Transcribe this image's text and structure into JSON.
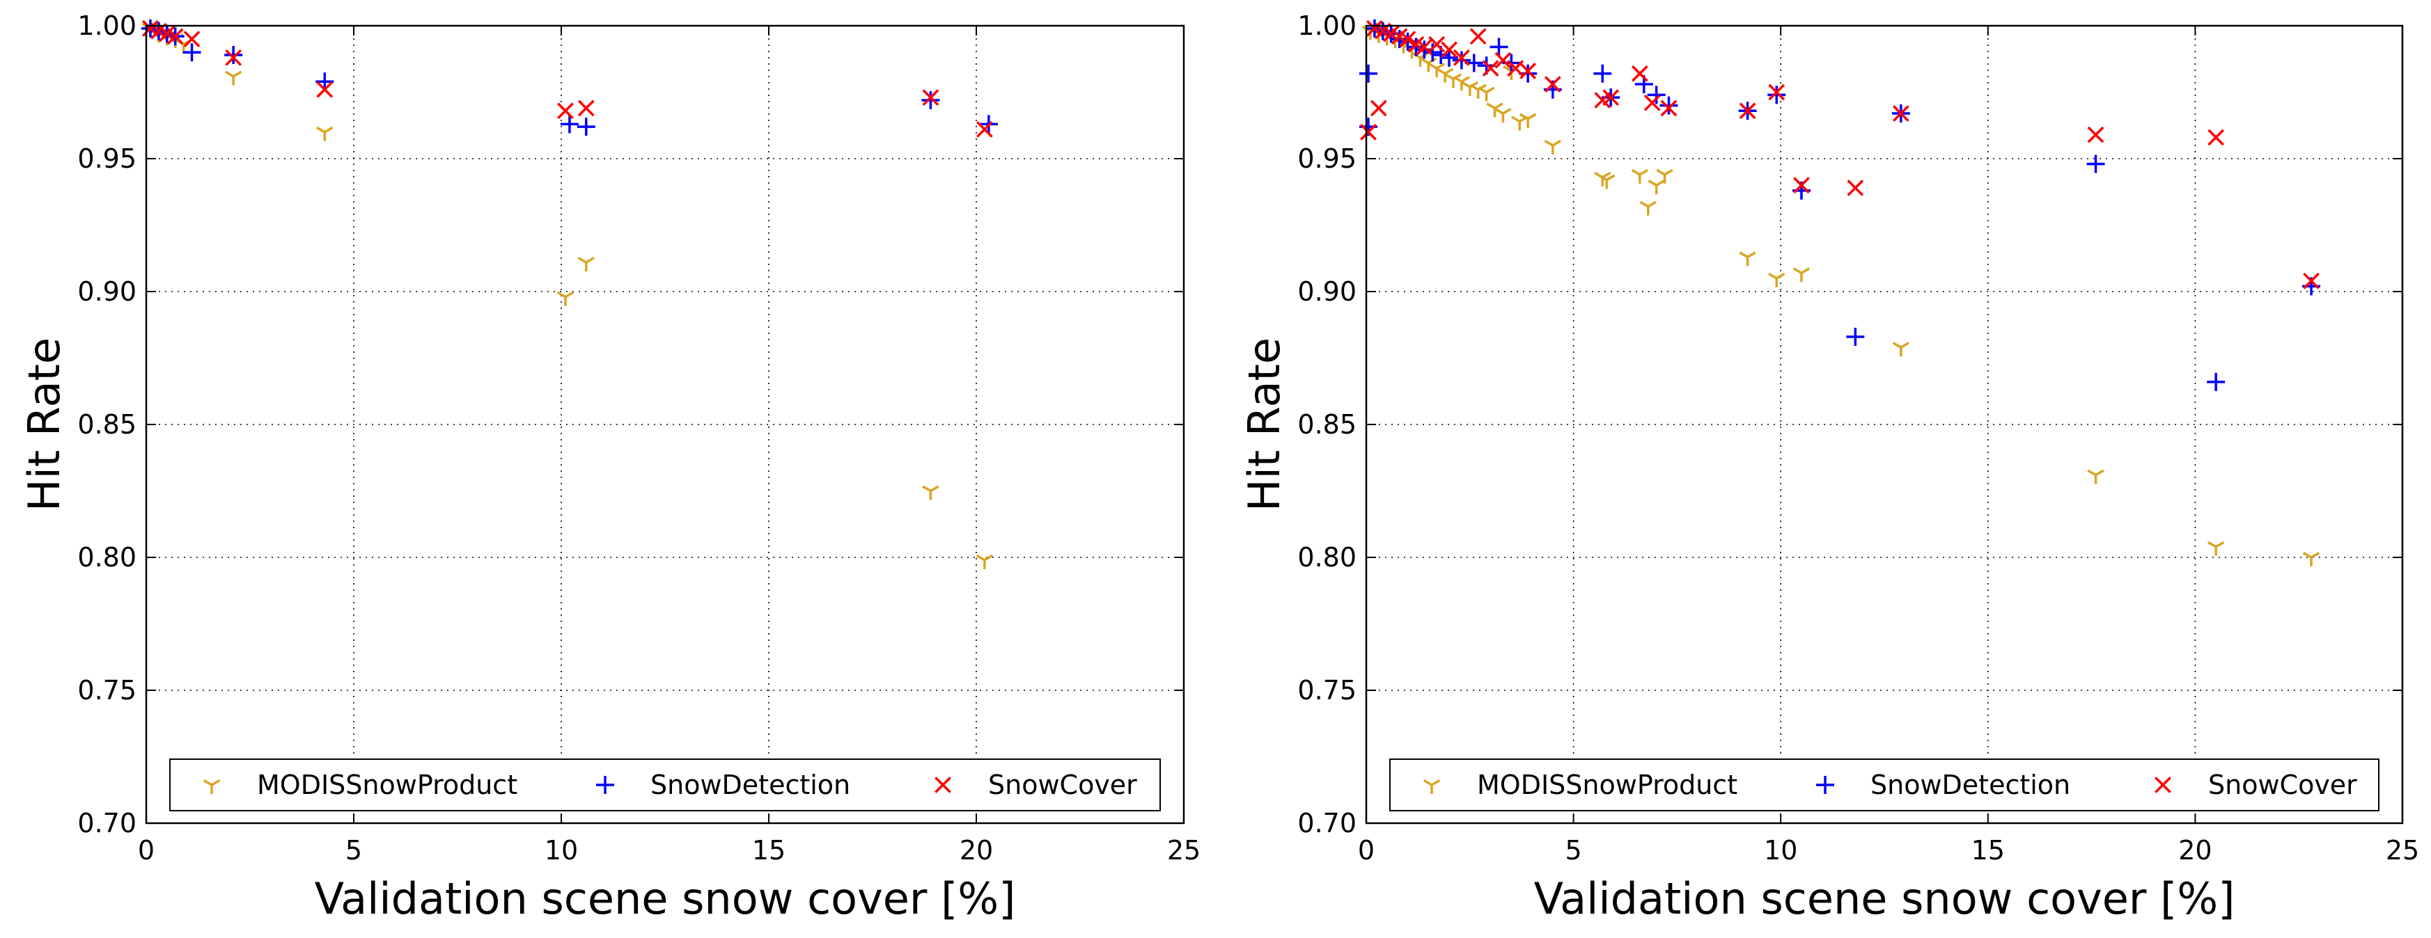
{
  "chart_data": [
    {
      "type": "scatter",
      "title": "",
      "xlabel": "Validation scene snow cover [%]",
      "ylabel": "Hit Rate",
      "xlim": [
        0,
        25
      ],
      "ylim": [
        0.7,
        1.0
      ],
      "xticks": [
        0,
        5,
        10,
        15,
        20,
        25
      ],
      "xtick_labels": [
        "0",
        "5",
        "10",
        "15",
        "20",
        "25"
      ],
      "yticks": [
        0.7,
        0.75,
        0.8,
        0.85,
        0.9,
        0.95,
        1.0
      ],
      "ytick_labels": [
        "0.70",
        "0.75",
        "0.80",
        "0.85",
        "0.90",
        "0.95",
        "1.00"
      ],
      "grid": true,
      "legend_position": "bottom",
      "series": [
        {
          "name": "MODISSnowProduct",
          "marker": "tri_down",
          "color": "#DAA520",
          "points": [
            [
              0.1,
              0.999
            ],
            [
              0.3,
              0.997
            ],
            [
              0.5,
              0.996
            ],
            [
              0.7,
              0.995
            ],
            [
              0.9,
              0.993
            ],
            [
              2.1,
              0.981
            ],
            [
              4.3,
              0.96
            ],
            [
              10.1,
              0.898
            ],
            [
              10.6,
              0.911
            ],
            [
              18.9,
              0.825
            ],
            [
              20.2,
              0.799
            ]
          ]
        },
        {
          "name": "SnowDetection",
          "marker": "plus",
          "color": "#0000FF",
          "points": [
            [
              0.1,
              0.999
            ],
            [
              0.3,
              0.998
            ],
            [
              0.5,
              0.997
            ],
            [
              0.7,
              0.996
            ],
            [
              1.1,
              0.99
            ],
            [
              2.1,
              0.989
            ],
            [
              4.3,
              0.979
            ],
            [
              10.2,
              0.963
            ],
            [
              10.6,
              0.962
            ],
            [
              18.9,
              0.972
            ],
            [
              20.3,
              0.963
            ]
          ]
        },
        {
          "name": "SnowCover",
          "marker": "x",
          "color": "#FF0000",
          "points": [
            [
              0.1,
              0.999
            ],
            [
              0.3,
              0.998
            ],
            [
              0.5,
              0.997
            ],
            [
              0.7,
              0.996
            ],
            [
              1.1,
              0.995
            ],
            [
              2.1,
              0.988
            ],
            [
              4.3,
              0.976
            ],
            [
              10.1,
              0.968
            ],
            [
              10.6,
              0.969
            ],
            [
              18.9,
              0.973
            ],
            [
              20.2,
              0.961
            ]
          ]
        }
      ]
    },
    {
      "type": "scatter",
      "title": "",
      "xlabel": "Validation scene snow cover [%]",
      "ylabel": "Hit Rate",
      "xlim": [
        0,
        25
      ],
      "ylim": [
        0.7,
        1.0
      ],
      "xticks": [
        0,
        5,
        10,
        15,
        20,
        25
      ],
      "xtick_labels": [
        "0",
        "5",
        "10",
        "15",
        "20",
        "25"
      ],
      "yticks": [
        0.7,
        0.75,
        0.8,
        0.85,
        0.9,
        0.95,
        1.0
      ],
      "ytick_labels": [
        "0.70",
        "0.75",
        "0.80",
        "0.85",
        "0.90",
        "0.95",
        "1.00"
      ],
      "grid": true,
      "legend_position": "bottom",
      "series": [
        {
          "name": "MODISSnowProduct",
          "marker": "tri_down",
          "color": "#DAA520",
          "points": [
            [
              0.1,
              0.998
            ],
            [
              0.3,
              0.997
            ],
            [
              0.5,
              0.996
            ],
            [
              0.7,
              0.995
            ],
            [
              0.9,
              0.993
            ],
            [
              1.1,
              0.991
            ],
            [
              1.3,
              0.988
            ],
            [
              1.5,
              0.986
            ],
            [
              1.7,
              0.984
            ],
            [
              1.9,
              0.982
            ],
            [
              2.1,
              0.98
            ],
            [
              2.3,
              0.979
            ],
            [
              2.5,
              0.977
            ],
            [
              2.7,
              0.976
            ],
            [
              2.9,
              0.975
            ],
            [
              3.1,
              0.969
            ],
            [
              3.3,
              0.967
            ],
            [
              3.5,
              0.983
            ],
            [
              3.7,
              0.964
            ],
            [
              3.9,
              0.965
            ],
            [
              4.5,
              0.955
            ],
            [
              5.7,
              0.943
            ],
            [
              5.8,
              0.942
            ],
            [
              6.6,
              0.944
            ],
            [
              6.8,
              0.932
            ],
            [
              7.0,
              0.94
            ],
            [
              7.2,
              0.944
            ],
            [
              9.2,
              0.913
            ],
            [
              9.9,
              0.905
            ],
            [
              10.5,
              0.907
            ],
            [
              12.9,
              0.879
            ],
            [
              17.6,
              0.831
            ],
            [
              20.5,
              0.804
            ],
            [
              22.8,
              0.8
            ]
          ]
        },
        {
          "name": "SnowDetection",
          "marker": "plus",
          "color": "#0000FF",
          "points": [
            [
              0.05,
              0.982
            ],
            [
              0.05,
              0.962
            ],
            [
              0.2,
              0.999
            ],
            [
              0.4,
              0.998
            ],
            [
              0.6,
              0.997
            ],
            [
              0.8,
              0.995
            ],
            [
              1.0,
              0.994
            ],
            [
              1.2,
              0.992
            ],
            [
              1.4,
              0.991
            ],
            [
              1.6,
              0.99
            ],
            [
              1.8,
              0.989
            ],
            [
              2.0,
              0.988
            ],
            [
              2.3,
              0.987
            ],
            [
              2.6,
              0.986
            ],
            [
              2.9,
              0.985
            ],
            [
              3.2,
              0.992
            ],
            [
              3.5,
              0.986
            ],
            [
              3.9,
              0.982
            ],
            [
              4.5,
              0.976
            ],
            [
              5.7,
              0.982
            ],
            [
              5.9,
              0.973
            ],
            [
              6.7,
              0.978
            ],
            [
              7.0,
              0.974
            ],
            [
              7.3,
              0.97
            ],
            [
              9.2,
              0.968
            ],
            [
              9.9,
              0.974
            ],
            [
              10.5,
              0.938
            ],
            [
              11.8,
              0.883
            ],
            [
              12.9,
              0.967
            ],
            [
              17.6,
              0.948
            ],
            [
              20.5,
              0.866
            ],
            [
              22.8,
              0.902
            ]
          ]
        },
        {
          "name": "SnowCover",
          "marker": "x",
          "color": "#FF0000",
          "points": [
            [
              0.05,
              0.96
            ],
            [
              0.3,
              0.969
            ],
            [
              0.2,
              0.999
            ],
            [
              0.4,
              0.998
            ],
            [
              0.6,
              0.997
            ],
            [
              0.8,
              0.996
            ],
            [
              1.0,
              0.995
            ],
            [
              1.2,
              0.993
            ],
            [
              1.4,
              0.992
            ],
            [
              1.7,
              0.993
            ],
            [
              2.0,
              0.991
            ],
            [
              2.3,
              0.988
            ],
            [
              2.7,
              0.996
            ],
            [
              3.0,
              0.984
            ],
            [
              3.3,
              0.987
            ],
            [
              3.6,
              0.984
            ],
            [
              3.9,
              0.983
            ],
            [
              4.5,
              0.978
            ],
            [
              5.7,
              0.972
            ],
            [
              5.9,
              0.973
            ],
            [
              6.6,
              0.982
            ],
            [
              6.9,
              0.971
            ],
            [
              7.3,
              0.969
            ],
            [
              9.2,
              0.968
            ],
            [
              9.9,
              0.975
            ],
            [
              10.5,
              0.94
            ],
            [
              11.8,
              0.939
            ],
            [
              12.9,
              0.967
            ],
            [
              17.6,
              0.959
            ],
            [
              20.5,
              0.958
            ],
            [
              22.8,
              0.904
            ]
          ]
        }
      ]
    }
  ]
}
